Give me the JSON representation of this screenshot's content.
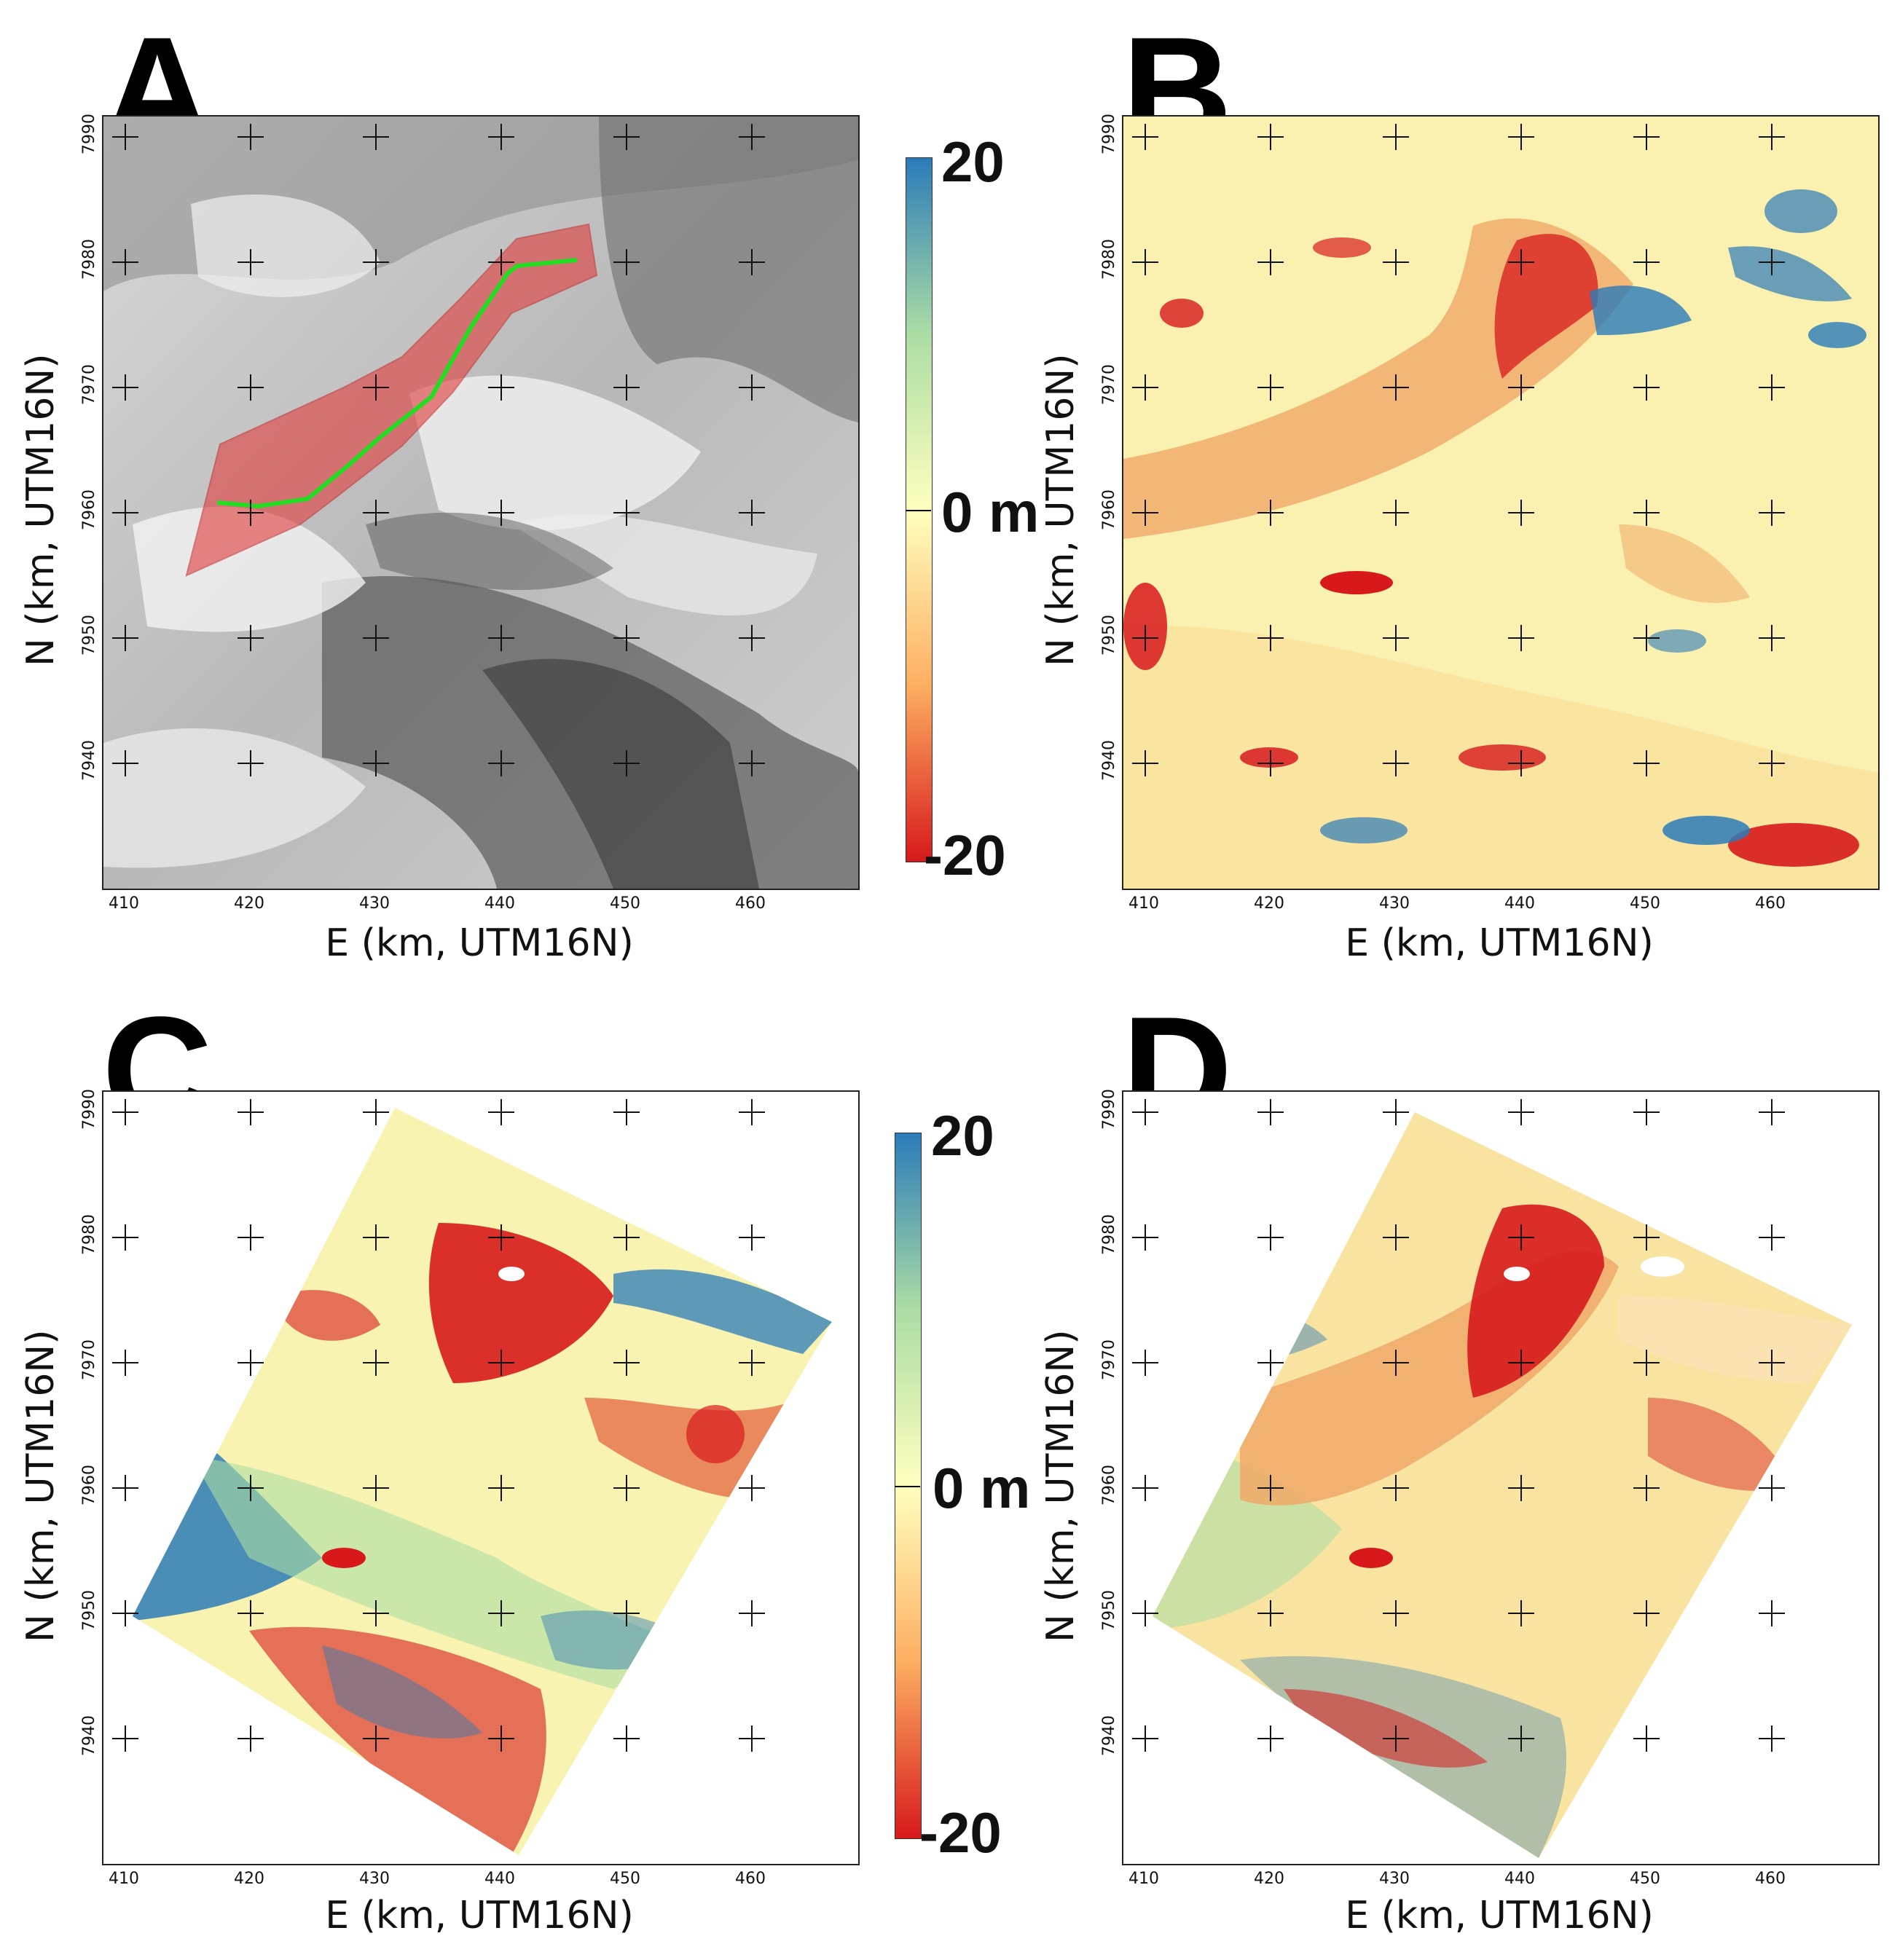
{
  "panels": [
    {
      "letter": "A",
      "xlabel": "E (km, UTM16N)",
      "ylabel": "N (km, UTM16N)"
    },
    {
      "letter": "B",
      "xlabel": "E (km, UTM16N)",
      "ylabel": "N (km, UTM16N)"
    },
    {
      "letter": "C",
      "xlabel": "E (km, UTM16N)",
      "ylabel": "N (km, UTM16N)"
    },
    {
      "letter": "D",
      "xlabel": "E (km, UTM16N)",
      "ylabel": "N (km, UTM16N)"
    }
  ],
  "x_ticks": [
    "410",
    "420",
    "430",
    "440",
    "450",
    "460"
  ],
  "y_ticks": [
    "7990",
    "7980",
    "7970",
    "7960",
    "7950",
    "7940"
  ],
  "colorbar": {
    "max_label": "20",
    "zero_label": "0 m",
    "min_label": "-20",
    "colors": [
      "#2b7bb9",
      "#abdda4",
      "#ffffbf",
      "#fdae61",
      "#d7191c"
    ]
  },
  "colors": {
    "glacier_polygon": "#e04040",
    "centerline": "#22dd22",
    "gain": "#2b7bb9",
    "loss": "#d7191c"
  }
}
